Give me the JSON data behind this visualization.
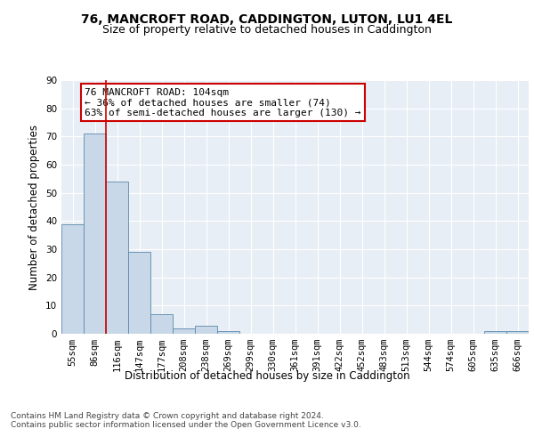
{
  "title1": "76, MANCROFT ROAD, CADDINGTON, LUTON, LU1 4EL",
  "title2": "Size of property relative to detached houses in Caddington",
  "xlabel": "Distribution of detached houses by size in Caddington",
  "ylabel": "Number of detached properties",
  "bar_labels": [
    "55sqm",
    "86sqm",
    "116sqm",
    "147sqm",
    "177sqm",
    "208sqm",
    "238sqm",
    "269sqm",
    "299sqm",
    "330sqm",
    "361sqm",
    "391sqm",
    "422sqm",
    "452sqm",
    "483sqm",
    "513sqm",
    "544sqm",
    "574sqm",
    "605sqm",
    "635sqm",
    "666sqm"
  ],
  "bar_values": [
    39,
    71,
    54,
    29,
    7,
    2,
    3,
    1,
    0,
    0,
    0,
    0,
    0,
    0,
    0,
    0,
    0,
    0,
    0,
    1,
    1
  ],
  "bar_color": "#c8d8e8",
  "bar_edge_color": "#5a8aaa",
  "ylim": [
    0,
    90
  ],
  "yticks": [
    0,
    10,
    20,
    30,
    40,
    50,
    60,
    70,
    80,
    90
  ],
  "red_line_bin_index": 1,
  "annotation_text": "76 MANCROFT ROAD: 104sqm\n← 36% of detached houses are smaller (74)\n63% of semi-detached houses are larger (130) →",
  "annotation_box_color": "#ffffff",
  "annotation_box_edge": "#cc0000",
  "red_line_color": "#cc0000",
  "footer_text": "Contains HM Land Registry data © Crown copyright and database right 2024.\nContains public sector information licensed under the Open Government Licence v3.0.",
  "background_color": "#e8eef5",
  "grid_color": "#ffffff",
  "title_fontsize": 10,
  "subtitle_fontsize": 9,
  "axis_label_fontsize": 8.5,
  "tick_fontsize": 7.5,
  "annotation_fontsize": 8,
  "footer_fontsize": 6.5
}
